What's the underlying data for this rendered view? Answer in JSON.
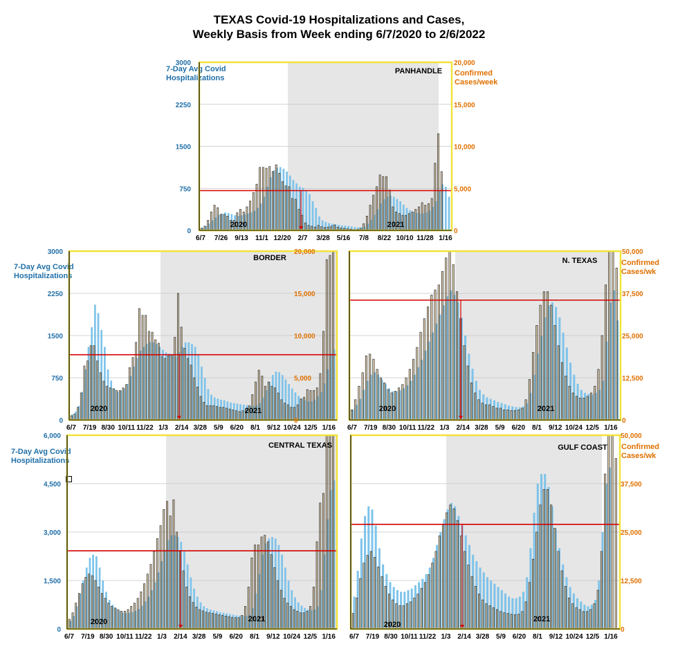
{
  "title": {
    "line1": "TEXAS Covid-19 Hospitalizations and Cases,",
    "line2": "Weekly Basis from Week ending 6/7/2020 to 2/6/2022"
  },
  "colors": {
    "hospitalizations": "#7ec3ea",
    "cases": "#c7a86c",
    "case_outline": "#2b2b2b",
    "threshold": "#d40000",
    "frame": "#f2e23a",
    "shade": "#e6e6e6",
    "left_axis": "#1f6fa8",
    "right_axis": "#e07000"
  },
  "axis_labels": {
    "left_line1": "7-Day Avg Covid",
    "left_line2": "Hospitalizations",
    "right_line1": "Confirmed",
    "right_cases_week": "Cases/week",
    "right_cases_wk": "Cases/wk"
  },
  "chart_data": [
    {
      "type": "bar",
      "region": "PANHANDLE",
      "x_ticks": [
        "6/7",
        "7/26",
        "9/13",
        "11/1",
        "12/20",
        "2/7",
        "3/28",
        "5/16",
        "7/8",
        "8/22",
        "10/10",
        "11/28",
        "1/16"
      ],
      "year_labels": [
        "2020",
        "2021"
      ],
      "left_ticks": [
        "0",
        "750",
        "1500",
        "2250",
        "3000"
      ],
      "right_ticks": [
        "0",
        "5,000",
        "10,000",
        "15,000",
        "20,000"
      ],
      "ylim_left": [
        0,
        3000
      ],
      "ylim_right": [
        0,
        20000
      ],
      "threshold_hosp": 710,
      "series": [
        {
          "name": "Hosp",
          "values": [
            50,
            80,
            120,
            180,
            230,
            280,
            300,
            320,
            310,
            290,
            270,
            260,
            270,
            290,
            300,
            320,
            350,
            400,
            480,
            600,
            780,
            950,
            1070,
            1120,
            1130,
            1100,
            1050,
            980,
            900,
            840,
            780,
            760,
            720,
            650,
            520,
            400,
            250,
            180,
            150,
            130,
            120,
            110,
            100,
            90,
            85,
            80,
            70,
            60,
            55,
            55,
            70,
            120,
            190,
            280,
            380,
            480,
            560,
            600,
            620,
            600,
            560,
            520,
            460,
            400,
            360,
            330,
            310,
            300,
            300,
            320,
            350,
            420,
            520,
            700,
            820,
            780,
            600
          ]
        },
        {
          "name": "Cases",
          "values": [
            250,
            500,
            1200,
            2200,
            3000,
            2700,
            1900,
            1900,
            1700,
            1200,
            1200,
            2100,
            2500,
            2200,
            2800,
            3500,
            4500,
            5500,
            7500,
            7500,
            7400,
            7600,
            7000,
            7800,
            6800,
            5800,
            5300,
            5200,
            3800,
            3700,
            2500,
            1800,
            900,
            600,
            500,
            400,
            600,
            450,
            350,
            400,
            500,
            650,
            400,
            300,
            250,
            200,
            150,
            100,
            120,
            250,
            800,
            1700,
            3000,
            4200,
            5200,
            6600,
            6400,
            6400,
            4800,
            2800,
            2200,
            2000,
            1800,
            1800,
            2000,
            2200,
            2500,
            2800,
            3300,
            3000,
            3200,
            3800,
            8000,
            11500,
            7000
          ]
        }
      ]
    },
    {
      "type": "bar",
      "region": "BORDER",
      "x_ticks": [
        "6/7",
        "7/19",
        "8/30",
        "10/11",
        "11/22",
        "1/3",
        "2/14",
        "3/28",
        "5/9",
        "6/20",
        "8/1",
        "9/12",
        "10/24",
        "12/5",
        "1/16"
      ],
      "year_labels": [
        "2020",
        "2021"
      ],
      "left_ticks": [
        "0",
        "750",
        "1500",
        "2250",
        "3000"
      ],
      "right_ticks": [
        "0",
        "5,000",
        "10,000",
        "15,000",
        "20,000"
      ],
      "ylim_left": [
        0,
        3000
      ],
      "ylim_right": [
        0,
        20000
      ],
      "threshold_hosp": 1160,
      "series": [
        {
          "name": "Hosp",
          "values": [
            100,
            150,
            250,
            500,
            900,
            1300,
            1650,
            2050,
            1900,
            1600,
            1300,
            900,
            700,
            560,
            500,
            520,
            560,
            640,
            780,
            950,
            1100,
            1230,
            1300,
            1350,
            1380,
            1380,
            1350,
            1300,
            1250,
            1200,
            1180,
            1150,
            1130,
            1200,
            1300,
            1380,
            1380,
            1350,
            1300,
            1150,
            950,
            750,
            550,
            450,
            400,
            380,
            360,
            350,
            330,
            310,
            300,
            290,
            280,
            270,
            260,
            250,
            250,
            260,
            300,
            400,
            530,
            680,
            800,
            860,
            850,
            800,
            720,
            640,
            560,
            490,
            430,
            380,
            350,
            330,
            330,
            360,
            420,
            500,
            650,
            900,
            1180,
            1250
          ]
        },
        {
          "name": "Cases",
          "values": [
            500,
            700,
            1500,
            3200,
            6400,
            7000,
            8800,
            8800,
            7000,
            5600,
            4600,
            4000,
            3800,
            3700,
            3500,
            3500,
            3800,
            4200,
            6200,
            7400,
            9200,
            13200,
            12400,
            12400,
            10500,
            10400,
            9500,
            9100,
            7500,
            7300,
            7600,
            7700,
            9800,
            15000,
            11000,
            8500,
            7300,
            6500,
            5000,
            3900,
            2800,
            2100,
            1700,
            1700,
            1700,
            1600,
            1500,
            1500,
            1400,
            1300,
            1200,
            1100,
            1000,
            1100,
            1200,
            1700,
            3000,
            4500,
            5900,
            5200,
            4000,
            4500,
            4000,
            3800,
            3200,
            2400,
            2000,
            1800,
            1500,
            1500,
            1800,
            2500,
            2700,
            3600,
            3500,
            3500,
            3800,
            5500,
            10500,
            19000,
            19500,
            20000
          ]
        }
      ]
    },
    {
      "type": "bar",
      "region": "N. TEXAS",
      "x_ticks": [
        "6/7",
        "7/19",
        "8/30",
        "10/11",
        "11/22",
        "1/3",
        "2/14",
        "3/28",
        "5/9",
        "6/20",
        "8/1",
        "9/12",
        "10/24",
        "12/5",
        "1/16"
      ],
      "year_labels": [
        "2020",
        "2021"
      ],
      "left_ticks": [],
      "right_ticks": [
        "0",
        "12,500",
        "25,000",
        "37,500",
        "50,000"
      ],
      "ylim_left": [
        0,
        5600
      ],
      "ylim_right": [
        0,
        50000
      ],
      "threshold_cases": 35500,
      "series": [
        {
          "name": "Hosp",
          "values": [
            350,
            500,
            700,
            1000,
            1300,
            1500,
            1580,
            1500,
            1350,
            1200,
            1050,
            950,
            950,
            980,
            1050,
            1150,
            1300,
            1500,
            1750,
            2000,
            2300,
            2600,
            2900,
            3200,
            3500,
            3800,
            4100,
            4300,
            4150,
            3900,
            3400,
            2800,
            2200,
            1700,
            1300,
            1000,
            850,
            750,
            700,
            650,
            600,
            560,
            520,
            480,
            450,
            430,
            420,
            450,
            550,
            900,
            1500,
            2200,
            2800,
            3400,
            3800,
            3900,
            3750,
            3400,
            2900,
            2400,
            1900,
            1500,
            1200,
            1000,
            900,
            860,
            840,
            900,
            1000,
            1300,
            2600,
            3900,
            4300,
            3300
          ]
        },
        {
          "name": "Cases",
          "values": [
            3000,
            6000,
            10000,
            14000,
            19000,
            19500,
            18000,
            15000,
            12500,
            11000,
            9000,
            8000,
            8500,
            9500,
            10500,
            12500,
            15000,
            18000,
            21500,
            26000,
            30000,
            33500,
            37000,
            38500,
            40000,
            44000,
            48000,
            50000,
            46000,
            38000,
            30000,
            22000,
            16000,
            11000,
            8000,
            6000,
            5000,
            4500,
            4500,
            4000,
            3500,
            3500,
            3000,
            3000,
            2800,
            2800,
            3000,
            3500,
            6000,
            12000,
            20000,
            28000,
            34000,
            38000,
            38000,
            34000,
            28000,
            22000,
            17000,
            13000,
            10000,
            8000,
            7000,
            6500,
            6500,
            7000,
            8000,
            10000,
            15000,
            25000,
            40000,
            50000,
            50000,
            45000
          ]
        }
      ]
    },
    {
      "type": "bar",
      "region": "CENTRAL TEXAS",
      "x_ticks": [
        "6/7",
        "7/19",
        "8/30",
        "10/11",
        "11/22",
        "1/3",
        "2/14",
        "3/28",
        "5/9",
        "6/20",
        "8/1",
        "9/12",
        "10/24",
        "12/5",
        "1/16"
      ],
      "year_labels": [
        "2020",
        "2021"
      ],
      "left_ticks": [
        "0",
        "1,500",
        "3,000",
        "4,500",
        "6,000"
      ],
      "right_ticks": [],
      "ylim_left": [
        0,
        6000
      ],
      "ylim_right": [
        0,
        6000
      ],
      "threshold_hosp": 2420,
      "series": [
        {
          "name": "Hosp",
          "values": [
            250,
            400,
            700,
            1100,
            1500,
            1900,
            2200,
            2300,
            2250,
            1900,
            1500,
            1150,
            900,
            750,
            650,
            560,
            500,
            490,
            500,
            520,
            560,
            620,
            720,
            850,
            1000,
            1200,
            1450,
            1750,
            2100,
            2450,
            2750,
            2900,
            2900,
            2850,
            2700,
            2400,
            2000,
            1600,
            1250,
            1000,
            820,
            700,
            640,
            600,
            570,
            550,
            520,
            500,
            480,
            460,
            440,
            420,
            410,
            400,
            400,
            440,
            650,
            1100,
            1700,
            2300,
            2650,
            2800,
            2850,
            2800,
            2600,
            2300,
            1900,
            1500,
            1200,
            980,
            820,
            720,
            650,
            600,
            580,
            600,
            700,
            1200,
            2300,
            3400,
            4300,
            4600
          ]
        },
        {
          "name": "Cases",
          "values": [
            300,
            500,
            800,
            1100,
            1400,
            1600,
            1700,
            1650,
            1500,
            1300,
            1100,
            950,
            800,
            700,
            650,
            600,
            550,
            550,
            600,
            700,
            800,
            950,
            1150,
            1400,
            1700,
            2000,
            2400,
            2800,
            3200,
            3700,
            3950,
            3500,
            4000,
            3000,
            2400,
            1800,
            1300,
            1000,
            820,
            680,
            600,
            560,
            520,
            500,
            480,
            460,
            440,
            420,
            400,
            380,
            360,
            350,
            350,
            420,
            700,
            1300,
            2200,
            2600,
            2600,
            2850,
            2900,
            2700,
            2300,
            1900,
            1500,
            1200,
            950,
            800,
            700,
            600,
            550,
            500,
            500,
            550,
            700,
            1300,
            2700,
            3900,
            4200,
            6000,
            6000,
            6000
          ]
        }
      ]
    },
    {
      "type": "bar",
      "region": "GULF COAST",
      "x_ticks": [
        "6/7",
        "7/19",
        "8/30",
        "10/11",
        "11/22",
        "1/3",
        "2/14",
        "3/28",
        "5/9",
        "6/20",
        "8/1",
        "9/12",
        "10/24",
        "12/5",
        "1/16"
      ],
      "year_labels": [
        "2020",
        "2021"
      ],
      "left_ticks": [],
      "right_ticks": [
        "0",
        "12,500",
        "25,000",
        "37,500",
        "50,000"
      ],
      "ylim_left": [
        0,
        6000
      ],
      "ylim_right": [
        0,
        50000
      ],
      "threshold_cases": 27000,
      "series": [
        {
          "name": "Hosp",
          "values": [
            1000,
            1800,
            2800,
            3500,
            3800,
            3700,
            3200,
            2500,
            2000,
            1700,
            1450,
            1300,
            1200,
            1150,
            1150,
            1200,
            1250,
            1350,
            1450,
            1550,
            1700,
            1900,
            2200,
            2600,
            3000,
            3400,
            3700,
            3900,
            3800,
            3500,
            3200,
            2900,
            2600,
            2300,
            2100,
            1900,
            1750,
            1600,
            1500,
            1400,
            1300,
            1200,
            1100,
            1000,
            950,
            950,
            1000,
            1150,
            1600,
            2500,
            3600,
            4500,
            4800,
            4800,
            4400,
            3800,
            3100,
            2500,
            2000,
            1600,
            1300,
            1100,
            950,
            850,
            750,
            700,
            750,
            900,
            1500,
            3000,
            4500,
            5000
          ]
        },
        {
          "name": "Cases",
          "values": [
            4000,
            8000,
            13000,
            17000,
            19000,
            20000,
            18500,
            16000,
            13500,
            11000,
            9000,
            7500,
            6500,
            6000,
            6000,
            6500,
            7000,
            8000,
            9000,
            10500,
            12000,
            14000,
            17000,
            20000,
            24000,
            27000,
            30000,
            32000,
            31000,
            28000,
            24000,
            20000,
            16500,
            13500,
            11000,
            9000,
            7500,
            6500,
            6000,
            5500,
            5000,
            4500,
            4200,
            4000,
            3800,
            3700,
            3800,
            4500,
            7000,
            12000,
            18000,
            25000,
            32000,
            36000,
            36000,
            32000,
            26000,
            20000,
            15000,
            11000,
            8000,
            6500,
            5500,
            5000,
            4500,
            4500,
            5000,
            6500,
            10000,
            20000,
            40000,
            50000,
            50000,
            44000
          ]
        }
      ]
    }
  ]
}
